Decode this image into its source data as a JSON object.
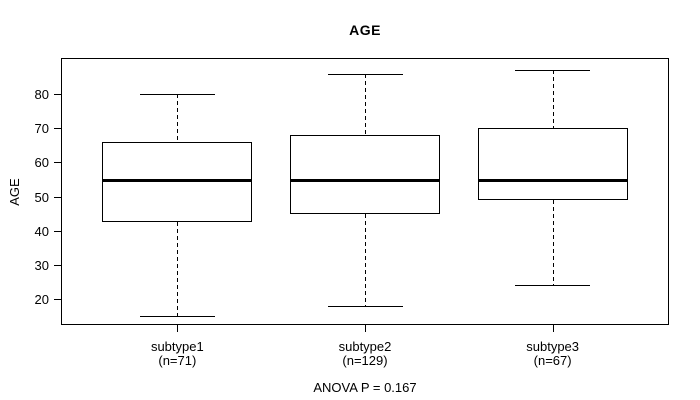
{
  "chart_data": {
    "type": "boxplot",
    "title": "AGE",
    "ylabel": "AGE",
    "xlabel": "",
    "annotation": "ANOVA P = 0.167",
    "ylim": [
      12.4,
      90.6
    ],
    "yticks": [
      20,
      30,
      40,
      50,
      60,
      70,
      80
    ],
    "grid": "off",
    "legend": "none",
    "line_color": "#000000",
    "box_fill": "#ffffff",
    "groups": [
      {
        "label": "subtype1",
        "sublabel": "(n=71)",
        "n": 71,
        "whisker_low": 15,
        "q1": 42.5,
        "median": 55,
        "q3": 66,
        "whisker_high": 80
      },
      {
        "label": "subtype2",
        "sublabel": "(n=129)",
        "n": 129,
        "whisker_low": 18,
        "q1": 45,
        "median": 55,
        "q3": 68,
        "whisker_high": 86
      },
      {
        "label": "subtype3",
        "sublabel": "(n=67)",
        "n": 67,
        "whisker_low": 24,
        "q1": 49,
        "median": 55,
        "q3": 70,
        "whisker_high": 87
      }
    ]
  }
}
